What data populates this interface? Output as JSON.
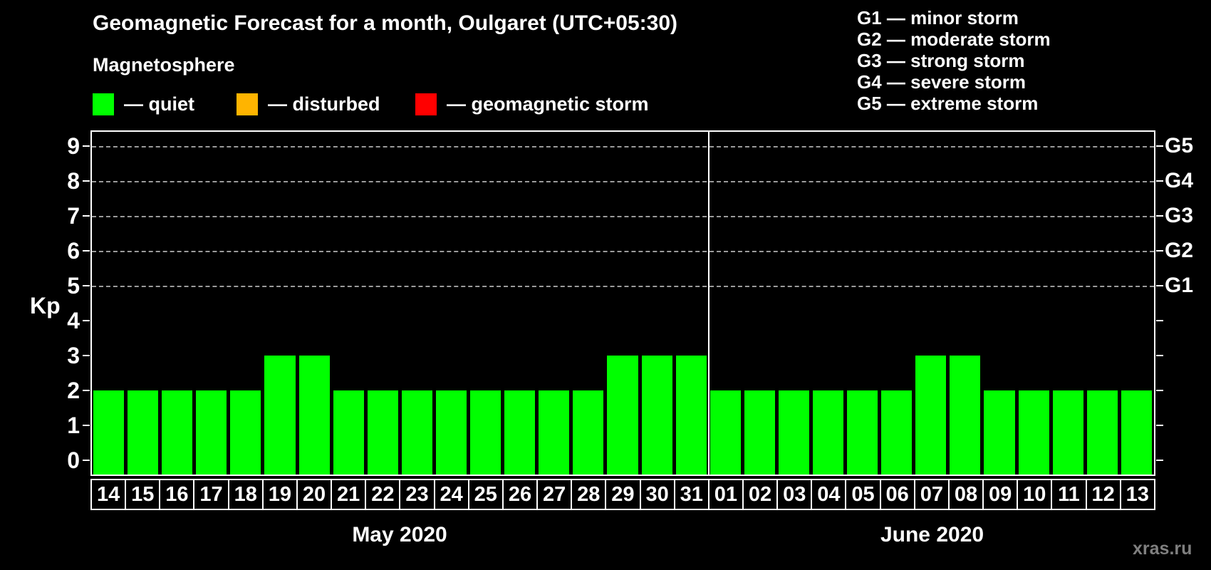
{
  "page": {
    "title": "Geomagnetic Forecast for a month, Oulgaret (UTC+05:30)",
    "subtitle": "Magnetosphere",
    "watermark": "xras.ru"
  },
  "legend": {
    "items": [
      {
        "name": "quiet",
        "color": "#00ff00",
        "label": "— quiet"
      },
      {
        "name": "disturbed",
        "color": "#ffb400",
        "label": "— disturbed"
      },
      {
        "name": "geomagnetic-storm",
        "color": "#ff0000",
        "label": "— geomagnetic storm"
      }
    ]
  },
  "g_legend": {
    "lines": [
      "G1 — minor storm",
      "G2 — moderate storm",
      "G3 — strong storm",
      "G4 — severe storm",
      "G5 — extreme storm"
    ]
  },
  "chart_data": {
    "type": "bar",
    "title": "Geomagnetic Forecast for a month, Oulgaret (UTC+05:30)",
    "ylabel": "Kp",
    "ylim": [
      -0.4,
      9.4
    ],
    "yticks": [
      0,
      1,
      2,
      3,
      4,
      5,
      6,
      7,
      8,
      9
    ],
    "gridlines_kp": [
      5,
      6,
      7,
      8,
      9
    ],
    "grid_style": "dashed",
    "gridline_color": "#9b9b9b",
    "right_axis": [
      {
        "label": "G1",
        "kp": 5
      },
      {
        "label": "G2",
        "kp": 6
      },
      {
        "label": "G3",
        "kp": 7
      },
      {
        "label": "G4",
        "kp": 8
      },
      {
        "label": "G5",
        "kp": 9
      }
    ],
    "bar_status_colors": {
      "quiet": "#00ff00",
      "disturbed": "#ffb400",
      "storm": "#ff0000"
    },
    "months": [
      {
        "label": "May 2020",
        "days": [
          "14",
          "15",
          "16",
          "17",
          "18",
          "19",
          "20",
          "21",
          "22",
          "23",
          "24",
          "25",
          "26",
          "27",
          "28",
          "29",
          "30",
          "31"
        ],
        "kp": [
          2,
          2,
          2,
          2,
          2,
          3,
          3,
          2,
          2,
          2,
          2,
          2,
          2,
          2,
          2,
          3,
          3,
          3
        ],
        "status": [
          "quiet",
          "quiet",
          "quiet",
          "quiet",
          "quiet",
          "quiet",
          "quiet",
          "quiet",
          "quiet",
          "quiet",
          "quiet",
          "quiet",
          "quiet",
          "quiet",
          "quiet",
          "quiet",
          "quiet",
          "quiet"
        ]
      },
      {
        "label": "June 2020",
        "days": [
          "01",
          "02",
          "03",
          "04",
          "05",
          "06",
          "07",
          "08",
          "09",
          "10",
          "11",
          "12",
          "13"
        ],
        "kp": [
          2,
          2,
          2,
          2,
          2,
          2,
          3,
          3,
          2,
          2,
          2,
          2,
          2
        ],
        "status": [
          "quiet",
          "quiet",
          "quiet",
          "quiet",
          "quiet",
          "quiet",
          "quiet",
          "quiet",
          "quiet",
          "quiet",
          "quiet",
          "quiet",
          "quiet"
        ]
      }
    ]
  }
}
